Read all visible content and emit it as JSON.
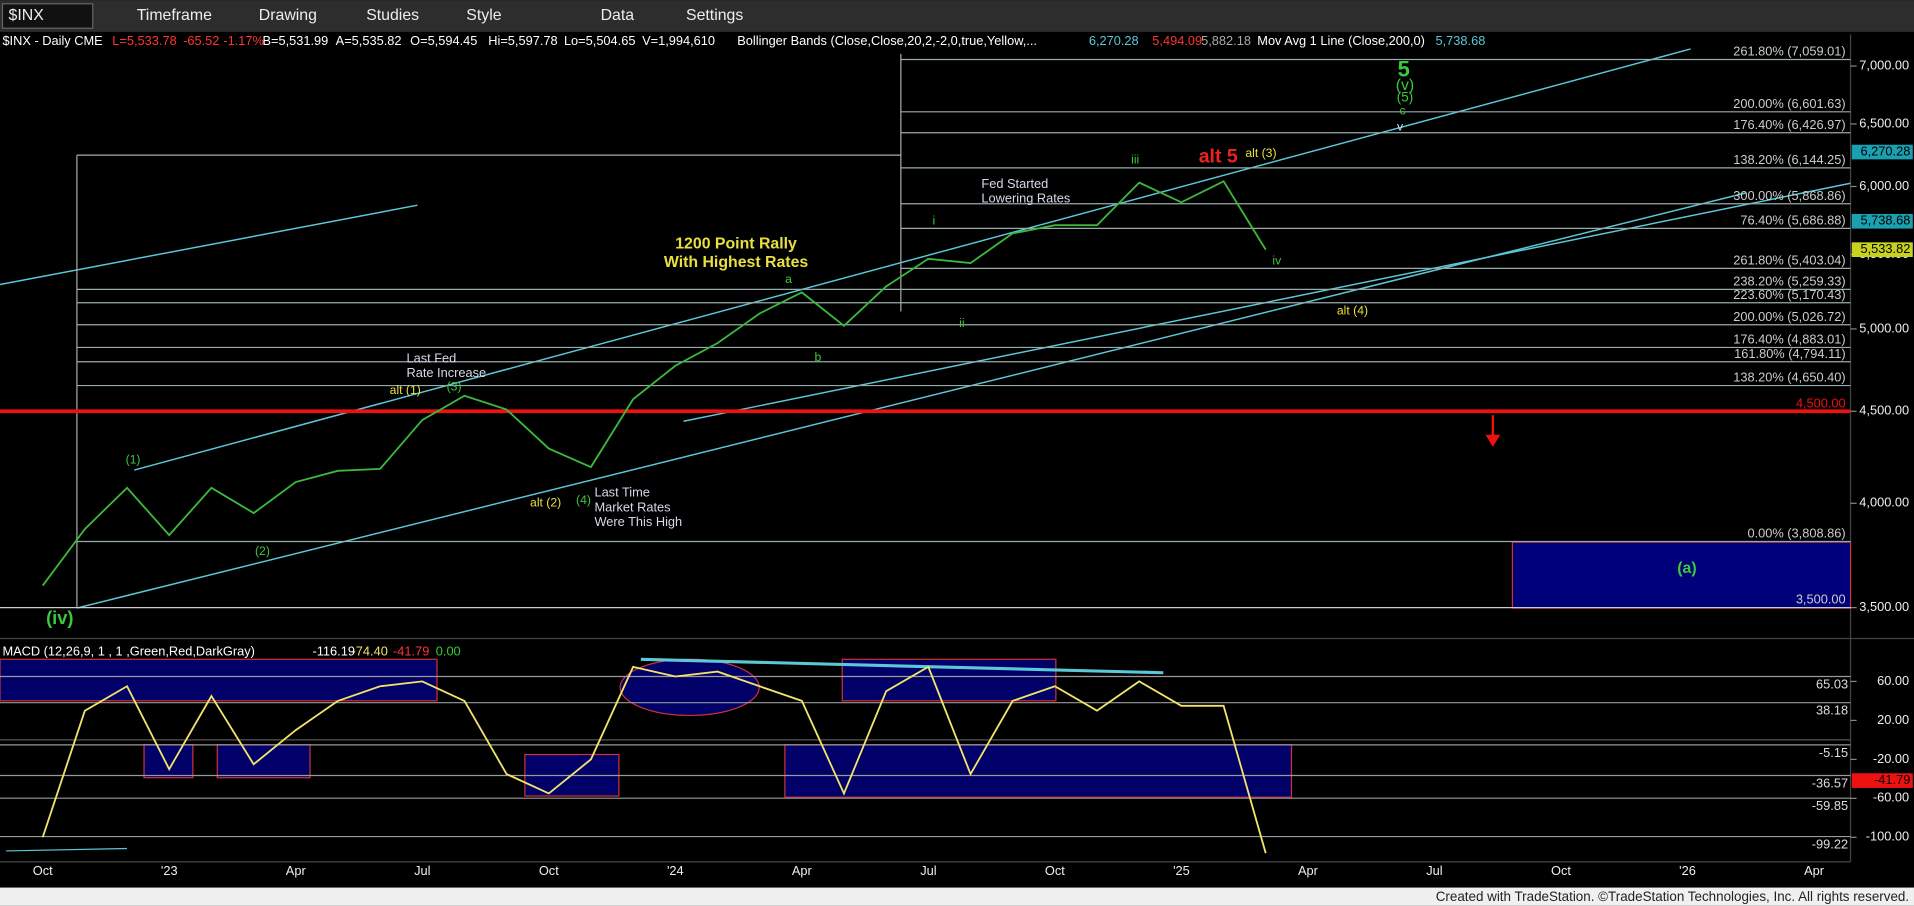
{
  "toolbar": {
    "symbol": "$INX",
    "items": [
      "Timeframe",
      "Drawing",
      "Studies",
      "Style",
      "Data",
      "Settings"
    ]
  },
  "footer": "Created with TradeStation. ©TradeStation Technologies, Inc. All rights reserved.",
  "chart_data": [
    {
      "type": "line",
      "title": "$INX - Daily  CME",
      "quote": [
        "L=5,533.78",
        "-65.52",
        "-1.17%",
        "B=5,531.99",
        "A=5,535.82",
        "O=5,594.45",
        "Hi=5,597.78",
        "Lo=5,504.65",
        "V=1,994,610",
        "Bollinger Bands (Close,Close,20,2,-2,0,true,Yellow,...",
        "6,270.28",
        "5,494.09",
        "5,882.18",
        "Mov Avg 1 Line (Close,200,0)",
        "5,738.68"
      ],
      "categories": [
        "Oct",
        null,
        null,
        "'23",
        null,
        null,
        "Apr",
        null,
        null,
        "Jul",
        null,
        null,
        "Oct",
        null,
        null,
        "'24",
        null,
        null,
        "Apr",
        null,
        null,
        "Jul",
        null,
        null,
        "Oct",
        null,
        null,
        "'25",
        null,
        null,
        "Apr",
        null,
        null,
        "Jul",
        null,
        null,
        "Oct",
        null,
        null,
        "'26",
        null,
        null,
        "Apr"
      ],
      "values": [
        3600,
        3870,
        4080,
        3840,
        4080,
        3950,
        4110,
        4170,
        4180,
        4450,
        4590,
        4510,
        4290,
        4190,
        4570,
        4770,
        4910,
        5100,
        5240,
        5020,
        5280,
        5470,
        5440,
        5650,
        5710,
        5710,
        6030,
        5880,
        6040,
        5534,
        null,
        null,
        null,
        null,
        null,
        null,
        null,
        null,
        null,
        null,
        null,
        null,
        null
      ],
      "color": "#3cb83c",
      "log_scale": true,
      "ylim": [
        3380,
        7290
      ],
      "yticks": [
        {
          "value": 3500,
          "label": "3,500.00"
        },
        {
          "value": 4000,
          "label": "4,000.00"
        },
        {
          "value": 4500,
          "label": "4,500.00"
        },
        {
          "value": 5000,
          "label": "5,000.00"
        },
        {
          "value": 5500,
          "label": "5,500.00"
        },
        {
          "value": 6000,
          "label": "6,000.00"
        },
        {
          "value": 6500,
          "label": "6,500.00"
        },
        {
          "value": 7000,
          "label": "7,000.00"
        }
      ],
      "fib_levels": [
        {
          "value": 7059.01,
          "label": "261.80% (7,059.01)"
        },
        {
          "value": 6601.63,
          "label": "200.00% (6,601.63)"
        },
        {
          "value": 6426.97,
          "label": "176.40% (6,426.97)"
        },
        {
          "value": 6144.25,
          "label": "138.20% (6,144.25)"
        },
        {
          "value": 5868.86,
          "label": "300.00% (5,868.86)"
        },
        {
          "value": 5686.88,
          "label": "76.40% (5,686.88)"
        },
        {
          "value": 5403.04,
          "label": "261.80% (5,403.04)"
        },
        {
          "value": 5259.33,
          "label": "238.20% (5,259.33)"
        },
        {
          "value": 5170.43,
          "label": "223.60% (5,170.43)"
        },
        {
          "value": 5026.72,
          "label": "200.00% (5,026.72)"
        },
        {
          "value": 4883.01,
          "label": "176.40% (4,883.01)"
        },
        {
          "value": 4794.11,
          "label": "161.80% (4,794.11)"
        },
        {
          "value": 4650.4,
          "label": "138.20% (4,650.40)"
        },
        {
          "value": 3808.86,
          "label": "0.00% (3,808.86)"
        }
      ],
      "levels": [
        {
          "value": 4500,
          "label": "4,500.00",
          "color": "#ee1111"
        },
        {
          "value": 3500,
          "label": "3,500.00",
          "color": "#cccccc"
        }
      ],
      "price_badges": [
        {
          "value": 6270.28,
          "label": "6,270.28",
          "color": "#1aa0b0"
        },
        {
          "value": 5738.68,
          "label": "5,738.68",
          "color": "#1aa0b0"
        },
        {
          "value": 5533.82,
          "label": "5,533.82",
          "color": "#c8d020"
        }
      ],
      "annotations": [
        "5",
        "(v)",
        "(5)",
        "c",
        "v",
        "alt 5",
        "alt (3)",
        "iii",
        "Fed Started",
        "Lowering Rates",
        "i",
        "ii",
        "iv",
        "alt (4)",
        "1200 Point Rally",
        "With Highest Rates",
        "a",
        "b",
        "Last Fed",
        "Rate Increase",
        "alt (1)",
        "(3)",
        "(1)",
        "(2)",
        "alt (2)",
        "(4)",
        "Last Time",
        "Market Rates",
        "Were This High",
        "(iv)",
        "(a)"
      ]
    },
    {
      "type": "line",
      "title": "MACD (12,26,9, 1 , 1 ,Green,Red,DarkGray)",
      "readouts": [
        "-116.19",
        "-74.40",
        "-41.79",
        "0.00"
      ],
      "categories": [
        "Oct",
        null,
        null,
        "'23",
        null,
        null,
        "Apr",
        null,
        null,
        "Jul",
        null,
        null,
        "Oct",
        null,
        null,
        "'24",
        null,
        null,
        "Apr",
        null,
        null,
        "Jul",
        null,
        null,
        "Oct",
        null,
        null,
        "'25",
        null,
        null,
        "Apr",
        null,
        null,
        "Jul",
        null,
        null,
        "Oct",
        null,
        null,
        "'26",
        null,
        null,
        "Apr"
      ],
      "values": [
        -100,
        30,
        55,
        -30,
        45,
        -25,
        10,
        40,
        55,
        60,
        40,
        -35,
        -55,
        -20,
        75,
        65,
        70,
        55,
        40,
        -55,
        50,
        75,
        -35,
        40,
        55,
        30,
        60,
        35,
        35,
        -116.19,
        null,
        null,
        null,
        null,
        null,
        null,
        null,
        null,
        null,
        null,
        null,
        null,
        null
      ],
      "color": "#f2e36b",
      "ylim": [
        -124,
        99
      ],
      "yticks": [
        {
          "value": 60,
          "label": "60.00"
        },
        {
          "value": 20,
          "label": "20.00"
        },
        {
          "value": -20,
          "label": "-20.00"
        },
        {
          "value": -60,
          "label": "-60.00"
        },
        {
          "value": -100,
          "label": "-100.00"
        }
      ],
      "levels": [
        65.03,
        38.18,
        -5.15,
        -36.57,
        -59.85,
        -99.22
      ],
      "badge": {
        "value": -41.79,
        "label": "-41.79",
        "color": "#ee1111"
      }
    }
  ]
}
